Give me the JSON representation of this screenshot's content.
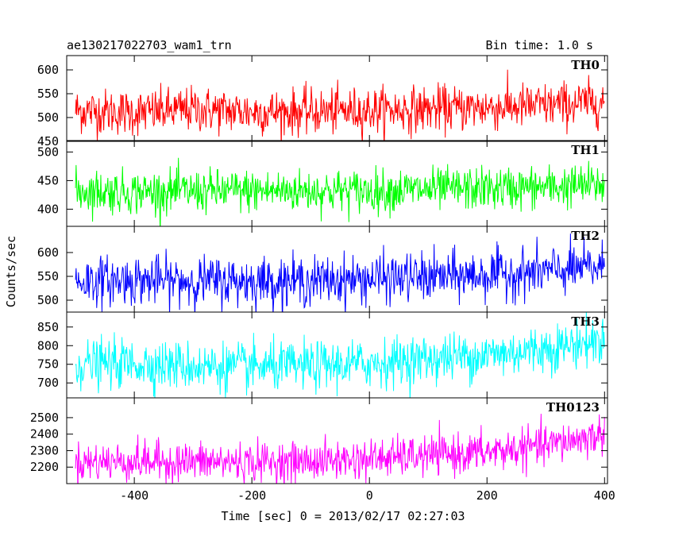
{
  "chart_data": {
    "type": "line",
    "title_left": "ae130217022703_wam1_trn",
    "title_right": "Bin time: 1.0 s",
    "xlabel": "Time [sec] 0 = 2013/02/17 02:27:03",
    "ylabel": "Counts/sec",
    "xlim": [
      -515,
      405
    ],
    "xticks": [
      -400,
      -200,
      0,
      200,
      400
    ],
    "grid": false,
    "panels": [
      {
        "name": "TH0",
        "color": "#ff0000",
        "ylim": [
          450,
          630
        ],
        "yticks": [
          450,
          500,
          550,
          600
        ],
        "x": [
          -500,
          -400,
          -300,
          -200,
          -100,
          0,
          100,
          200,
          300,
          400
        ],
        "mean": [
          515,
          510,
          517,
          512,
          512,
          515,
          518,
          521,
          525,
          533
        ],
        "spread": 28
      },
      {
        "name": "TH1",
        "color": "#00ff00",
        "ylim": [
          370,
          520
        ],
        "yticks": [
          400,
          450,
          500
        ],
        "x": [
          -500,
          -400,
          -300,
          -200,
          -100,
          0,
          100,
          200,
          300,
          400
        ],
        "mean": [
          432,
          430,
          431,
          432,
          432,
          432,
          434,
          436,
          438,
          443
        ],
        "spread": 22
      },
      {
        "name": "TH2",
        "color": "#0000ff",
        "ylim": [
          475,
          655
        ],
        "yticks": [
          500,
          550,
          600
        ],
        "x": [
          -500,
          -400,
          -300,
          -200,
          -100,
          0,
          100,
          200,
          300,
          400
        ],
        "mean": [
          540,
          542,
          540,
          540,
          540,
          545,
          548,
          553,
          560,
          570
        ],
        "spread": 30
      },
      {
        "name": "TH3",
        "color": "#00ffff",
        "ylim": [
          660,
          890
        ],
        "yticks": [
          700,
          750,
          800,
          850
        ],
        "x": [
          -500,
          -400,
          -300,
          -200,
          -100,
          0,
          100,
          200,
          300,
          400
        ],
        "mean": [
          750,
          752,
          745,
          742,
          745,
          752,
          765,
          775,
          792,
          815
        ],
        "spread": 38
      },
      {
        "name": "TH0123",
        "color": "#ff00ff",
        "ylim": [
          2100,
          2620
        ],
        "yticks": [
          2200,
          2300,
          2400,
          2500
        ],
        "x": [
          -500,
          -400,
          -300,
          -200,
          -100,
          0,
          100,
          200,
          300,
          400
        ],
        "mean": [
          2230,
          2235,
          2232,
          2230,
          2235,
          2250,
          2270,
          2290,
          2330,
          2400
        ],
        "spread": 70
      }
    ]
  }
}
